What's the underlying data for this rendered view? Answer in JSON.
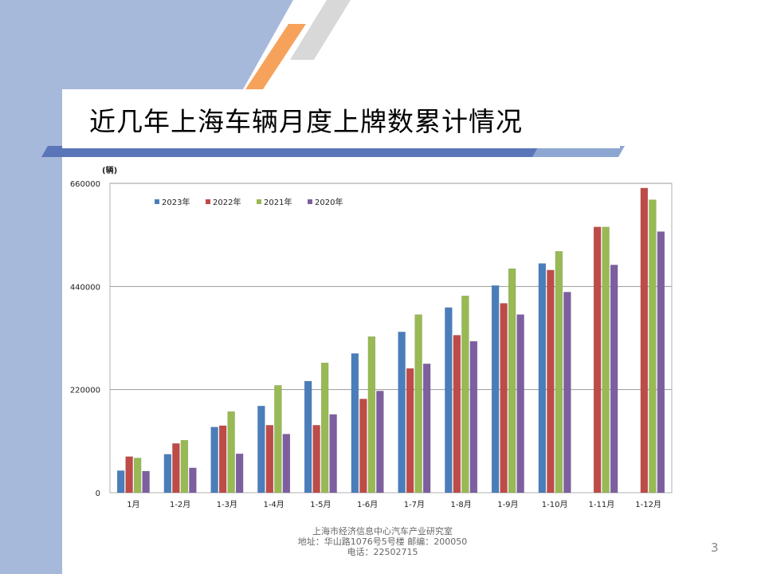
{
  "slide": {
    "title": "近几年上海车辆月度上牌数累计情况",
    "page_number": "3",
    "footer_lines": [
      "上海市经济信息中心汽车产业研究室",
      "地址：华山路1076号5号楼   邮编：200050",
      "电话：22502715"
    ],
    "colors": {
      "sidebar": "#a7b9da",
      "band": "#5a76b8",
      "stripe_orange": "#f7a25b",
      "stripe_gray": "#d8d8d8"
    }
  },
  "chart_data": {
    "type": "bar",
    "title": "",
    "unit_label": "(辆)",
    "categories": [
      "1月",
      "1-2月",
      "1-3月",
      "1-4月",
      "1-5月",
      "1-6月",
      "1-7月",
      "1-8月",
      "1-9月",
      "1-10月",
      "1-11月",
      "1-12月"
    ],
    "ylim": [
      0,
      660000
    ],
    "yticks": [
      0,
      220000,
      440000,
      660000
    ],
    "grid": true,
    "legend_position": "top-left",
    "series": [
      {
        "name": "2023年",
        "color": "#4a7ebb",
        "values": [
          47000,
          82000,
          140000,
          185000,
          238000,
          297000,
          343000,
          395000,
          442000,
          489000,
          null,
          null
        ]
      },
      {
        "name": "2022年",
        "color": "#be4b48",
        "values": [
          77000,
          105000,
          143000,
          144000,
          144000,
          200000,
          265000,
          336000,
          404000,
          475000,
          567000,
          650000
        ]
      },
      {
        "name": "2021年",
        "color": "#98b954",
        "values": [
          74000,
          112000,
          173000,
          229000,
          277000,
          333000,
          380000,
          420000,
          478000,
          515000,
          567000,
          625000
        ]
      },
      {
        "name": "2020年",
        "color": "#7d5fa0",
        "values": [
          46000,
          53000,
          83000,
          125000,
          167000,
          217000,
          275000,
          323000,
          380000,
          428000,
          486000,
          557000
        ]
      }
    ]
  }
}
